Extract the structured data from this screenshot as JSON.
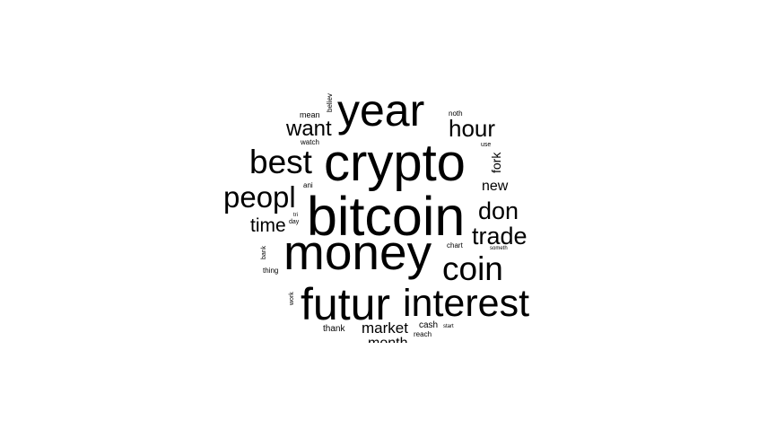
{
  "words": {
    "year": "year",
    "crypto": "crypto",
    "bitcoin": "bitcoin",
    "money": "money",
    "futur": "futur",
    "interest": "interest",
    "best": "best",
    "peopl": "peopl",
    "coin": "coin",
    "hour": "hour",
    "want": "want",
    "don": "don",
    "trade": "trade",
    "time": "time",
    "new": "new",
    "market": "market",
    "month": "month",
    "fork": "fork",
    "mean": "mean",
    "believ": "believ",
    "noth": "noth",
    "watch": "watch",
    "use": "use",
    "ani": "ani",
    "tri": "tri",
    "day": "day",
    "bank": "bank",
    "chart": "chart",
    "someth": "someth",
    "thing": "thing",
    "work": "work",
    "thank": "thank",
    "cash": "cash",
    "start": "start",
    "reach": "reach"
  },
  "colors": {
    "text": "#000000",
    "background": "#ffffff"
  }
}
